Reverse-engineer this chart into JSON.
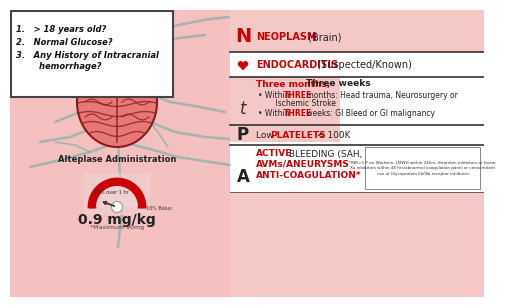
{
  "bg_color": "#f5c0c0",
  "white_bg": "#ffffff",
  "red": "#cc0000",
  "teal": "#5aafa0",
  "n_label": "N",
  "n_text_red": "NEOPLASM",
  "n_text_black": " (Brain)",
  "e_text_red": "ENDOCARDITIS",
  "e_text_black": " (Suspected/Known)",
  "t_label": "t",
  "t_header_red": "Three months, ",
  "t_header_black": "Three weeks",
  "t_bullet1_pre": "Within ",
  "t_bullet1_red": "THREE",
  "t_bullet1_post": " months: Head trauma, Neurosurgery or",
  "t_bullet1_cont": "    Ischemic Stroke",
  "t_bullet2_pre": "Within ",
  "t_bullet2_red": "THREE",
  "t_bullet2_post": " weeks: GI Bleed or GI malignancy",
  "p_label": "P",
  "p_text_pre": "Low ",
  "p_text_red": "PLATELETS",
  "p_text_post": " < 100K",
  "a_label": "A",
  "a_line1_red": "ACTIVE",
  "a_line1_post": " BLEEDING (SAH, ICH, Aortic Dissection)",
  "a_line2_red": "AVMs/ANEURYSMS",
  "a_line3_red": "ANTI-COAGULATION*",
  "footnote_line1": "*INR>1.7 on Warfarin, LMWH within 24hrs, thrombin inhibitors or factor",
  "footnote_line2": "Xa inhibitors within 48 hrs/abnormal coagulation panel or concomitant",
  "footnote_line3": "use of Glycoprotein IIb/IIIa receptor inhibitors",
  "alteplase_label": "Alteplase Administration",
  "dose_label": "0.9 mg/kg",
  "max_label": "*Maximum 90mg",
  "bolus_label": "10% Bolus",
  "pct_label": "90% over 1 hr",
  "checklist": [
    "1.   > 18 years old?",
    "2.   Normal Glucose?",
    "3.   Any History of Intracranial\n        hemorrhage?"
  ]
}
